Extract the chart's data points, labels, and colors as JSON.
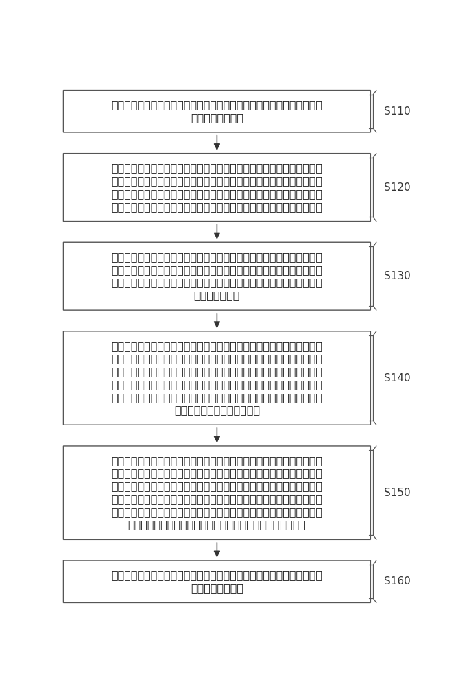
{
  "background_color": "#ffffff",
  "box_fill": "#ffffff",
  "box_edge": "#555555",
  "box_edge_width": 1.0,
  "arrow_color": "#333333",
  "label_color": "#333333",
  "text_color": "#222222",
  "font_size": 11.5,
  "label_font_size": 11.0,
  "boxes": [
    {
      "label": "S110",
      "lines": [
        "对岩样进行预处理，根据预处理后的岩样分析数据得到所述岩样的弹性参",
        "量的统计特征信息"
      ],
      "n_lines": 2
    },
    {
      "label": "S120",
      "lines": [
        "基于预设分布规律利用所述统计特征信息中的岩石骨架体积模量、岩石颗",
        "粒体积模量、孔隙流体体积模量、岩石剪切模量以及岩石密度的均值和方",
        "差分别确定所述岩石骨架体积模量的随机场、所述岩石颗粒体积模量的随",
        "机场、所述孔隙流体体积模量的随机场、以及所述岩石剪切模量的随机场"
      ],
      "n_lines": 4
    },
    {
      "label": "S130",
      "lines": [
        "利用所述岩石骨架体积模量的随机场、所述岩石颗粒体积模量的随机场、",
        "所述孔隙流体体积模量的随机场、所述岩石剪切模量的随机场、以及所述",
        "统计特征信息构建参数信息模量的随机场和饱和流体的随机孔隙介质的纵",
        "波模量的随机场"
      ],
      "n_lines": 4
    },
    {
      "label": "S140",
      "lines": [
        "根据所述饱和流体的随机孔隙介质的纵波模量的随机场、所述参数信息模",
        "量的随机场、以及所述岩石剪切模量的随机场分别计算得到所述饱和流体",
        "的随机孔隙介质的纵波模量和所述岩石剪切模量的均值，所述饱和流体的",
        "随机孔隙介质的纵波模量、所述参数信息模量和所述岩石剪切模量的方差",
        "，以及所述饱和流体的随机孔隙介质的纵波模量、所述参数信息模量和所",
        "述岩石剪切模量之间的协方差"
      ],
      "n_lines": 6
    },
    {
      "label": "S150",
      "lines": [
        "根据所述统计特征信息中的岩石骨架体积模量、岩石颗粒体积模量、孔隙",
        "流体体积模量、和岩石剪切模量的均值，所述饱和流体的随机孔隙介质的",
        "纵波模量和所述岩石剪切模量的均值，所述饱和流体的随机孔隙介质的纵",
        "波模量、所述参数信息模量以及所述岩石剪切模量的方差，以及所述饱和",
        "流体的随机孔隙介质的纵波模量、所述参数信息模量和所述岩石剪切模量",
        "之间的协方差计算得到饱和流体的随机孔隙介质有效纵波模量"
      ],
      "n_lines": 6
    },
    {
      "label": "S160",
      "lines": [
        "根据所述饱和流体的随机孔隙介质有效纵波模量计算得到随机孔隙介质模",
        "型地震波特征信息"
      ],
      "n_lines": 2
    }
  ]
}
